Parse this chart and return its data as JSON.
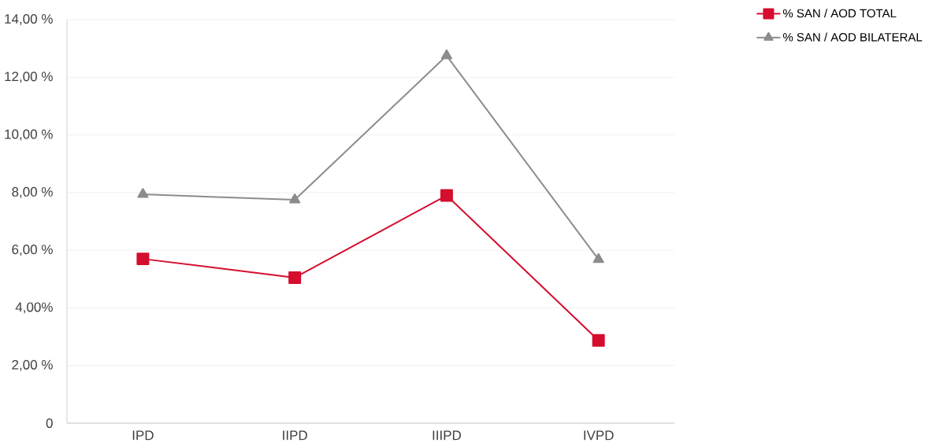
{
  "chart_data": {
    "type": "line",
    "categories": [
      "IPD",
      "IIPD",
      "IIIPD",
      "IVPD"
    ],
    "series": [
      {
        "name": "% SAN / AOD TOTAL",
        "color": "#d50d2e",
        "marker": "square",
        "values": [
          5.7,
          5.05,
          7.9,
          2.87
        ]
      },
      {
        "name": "% SAN / AOD BILATERAL",
        "color": "#8c8c8c",
        "marker": "triangle",
        "values": [
          7.94,
          7.75,
          12.75,
          5.68
        ]
      }
    ],
    "ylim": [
      0,
      14
    ],
    "yticks": [
      0,
      {
        "value": 2,
        "label": "2,00 %"
      },
      {
        "value": 4,
        "label": "4,00%"
      },
      {
        "value": 6,
        "label": "6,00 %"
      },
      {
        "value": 8,
        "label": "8,00 %"
      },
      {
        "value": 10,
        "label": "10,00 %"
      },
      {
        "value": 12,
        "label": "12,00 %"
      },
      {
        "value": 14,
        "label": "14,00 %"
      }
    ],
    "grid": "y",
    "legend": "top right",
    "line_style": "solid"
  }
}
